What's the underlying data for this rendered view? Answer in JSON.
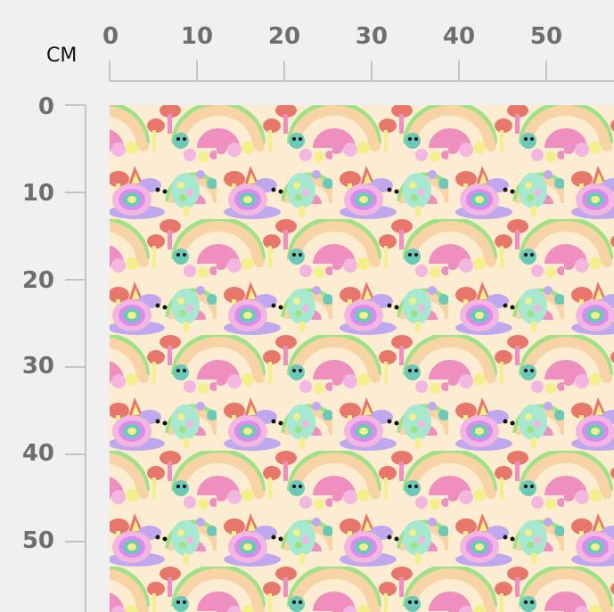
{
  "ruler": {
    "unit_label": "CM",
    "top_ticks": [
      "0",
      "10",
      "20",
      "30",
      "40",
      "50"
    ],
    "left_ticks": [
      "0",
      "10",
      "20",
      "30",
      "40",
      "50"
    ]
  },
  "fabric": {
    "pattern": "pastel rainbows, mushrooms, snails and caterpillars",
    "colors": {
      "background": "#fcedd2",
      "pink": "#ee8fbf",
      "peach": "#f7d3a5",
      "green": "#9fe286",
      "red": "#e8776b",
      "lavender": "#bfa8ee",
      "teal": "#6cc9b8",
      "yellow": "#f3ef8a"
    }
  }
}
